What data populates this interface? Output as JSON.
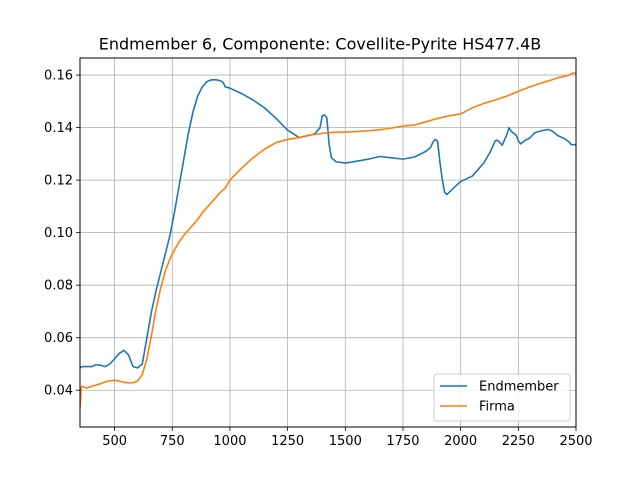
{
  "chart_data": {
    "type": "line",
    "title": "Endmember 6, Componente: Covellite-Pyrite HS477.4B",
    "xlabel": "",
    "ylabel": "",
    "xlim": [
      350,
      2500
    ],
    "ylim": [
      0.026,
      0.1665
    ],
    "grid": true,
    "legend_position": "lower-right",
    "x_ticks": [
      500,
      750,
      1000,
      1250,
      1500,
      1750,
      2000,
      2250,
      2500
    ],
    "x_tick_labels": [
      "500",
      "750",
      "1000",
      "1250",
      "1500",
      "1750",
      "2000",
      "2250",
      "2500"
    ],
    "y_ticks": [
      0.04,
      0.06,
      0.08,
      0.1,
      0.12,
      0.14,
      0.16
    ],
    "y_tick_labels": [
      "0.04",
      "0.06",
      "0.08",
      "0.10",
      "0.12",
      "0.14",
      "0.16"
    ],
    "series": [
      {
        "name": "Endmember",
        "color": "#1f77b4",
        "x": [
          350,
          360,
          380,
          400,
          420,
          440,
          460,
          480,
          500,
          520,
          540,
          560,
          580,
          600,
          620,
          640,
          660,
          680,
          700,
          720,
          740,
          760,
          780,
          800,
          820,
          840,
          860,
          880,
          900,
          920,
          940,
          960,
          970,
          980,
          1000,
          1050,
          1100,
          1150,
          1200,
          1250,
          1300,
          1350,
          1370,
          1380,
          1390,
          1400,
          1410,
          1420,
          1430,
          1440,
          1460,
          1500,
          1550,
          1600,
          1650,
          1700,
          1750,
          1800,
          1850,
          1870,
          1880,
          1890,
          1900,
          1910,
          1920,
          1930,
          1940,
          1960,
          2000,
          2050,
          2080,
          2100,
          2130,
          2150,
          2160,
          2180,
          2200,
          2210,
          2220,
          2240,
          2250,
          2260,
          2280,
          2300,
          2320,
          2350,
          2380,
          2400,
          2420,
          2450,
          2470,
          2480,
          2500
        ],
        "y": [
          0.0485,
          0.049,
          0.049,
          0.049,
          0.0497,
          0.0495,
          0.049,
          0.05,
          0.052,
          0.054,
          0.0552,
          0.0535,
          0.049,
          0.0485,
          0.05,
          0.06,
          0.07,
          0.078,
          0.085,
          0.092,
          0.099,
          0.108,
          0.118,
          0.128,
          0.138,
          0.146,
          0.152,
          0.1555,
          0.1575,
          0.1582,
          0.1582,
          0.1578,
          0.1572,
          0.1555,
          0.155,
          0.153,
          0.1505,
          0.1475,
          0.1435,
          0.139,
          0.1362,
          0.1372,
          0.1378,
          0.139,
          0.1398,
          0.1445,
          0.1448,
          0.1438,
          0.1335,
          0.1285,
          0.127,
          0.1265,
          0.1272,
          0.128,
          0.129,
          0.1285,
          0.128,
          0.1288,
          0.131,
          0.1325,
          0.1345,
          0.1355,
          0.1348,
          0.127,
          0.1205,
          0.1155,
          0.1145,
          0.1162,
          0.1195,
          0.1215,
          0.1245,
          0.1265,
          0.131,
          0.135,
          0.1352,
          0.1333,
          0.1373,
          0.14,
          0.1385,
          0.1372,
          0.135,
          0.1338,
          0.1352,
          0.136,
          0.138,
          0.1388,
          0.1393,
          0.1385,
          0.137,
          0.1358,
          0.1345,
          0.1335,
          0.1335
        ]
      },
      {
        "name": "Firma",
        "color": "#ff7f0e",
        "x": [
          350,
          355,
          360,
          380,
          400,
          420,
          440,
          460,
          480,
          500,
          520,
          540,
          560,
          580,
          600,
          620,
          640,
          660,
          680,
          700,
          720,
          740,
          760,
          780,
          800,
          820,
          840,
          860,
          880,
          900,
          920,
          940,
          960,
          980,
          1000,
          1050,
          1100,
          1150,
          1200,
          1250,
          1300,
          1350,
          1400,
          1450,
          1500,
          1550,
          1600,
          1650,
          1700,
          1750,
          1800,
          1850,
          1900,
          1950,
          2000,
          2050,
          2100,
          2150,
          2200,
          2250,
          2300,
          2350,
          2400,
          2420,
          2450,
          2470,
          2480,
          2490,
          2500
        ],
        "y": [
          0.033,
          0.041,
          0.0415,
          0.0408,
          0.0415,
          0.042,
          0.0425,
          0.0432,
          0.0436,
          0.0438,
          0.0435,
          0.043,
          0.0428,
          0.0428,
          0.0435,
          0.046,
          0.052,
          0.061,
          0.071,
          0.079,
          0.0855,
          0.09,
          0.0935,
          0.0965,
          0.099,
          0.101,
          0.103,
          0.105,
          0.1075,
          0.1095,
          0.1115,
          0.1135,
          0.1155,
          0.117,
          0.12,
          0.1245,
          0.1285,
          0.1318,
          0.1343,
          0.1355,
          0.1362,
          0.1372,
          0.1378,
          0.1382,
          0.1383,
          0.1385,
          0.1388,
          0.1392,
          0.1398,
          0.1406,
          0.141,
          0.1422,
          0.1435,
          0.1445,
          0.1452,
          0.1475,
          0.1492,
          0.1505,
          0.152,
          0.1538,
          0.1555,
          0.157,
          0.1583,
          0.159,
          0.1595,
          0.16,
          0.1605,
          0.1608,
          0.1605
        ]
      }
    ]
  }
}
